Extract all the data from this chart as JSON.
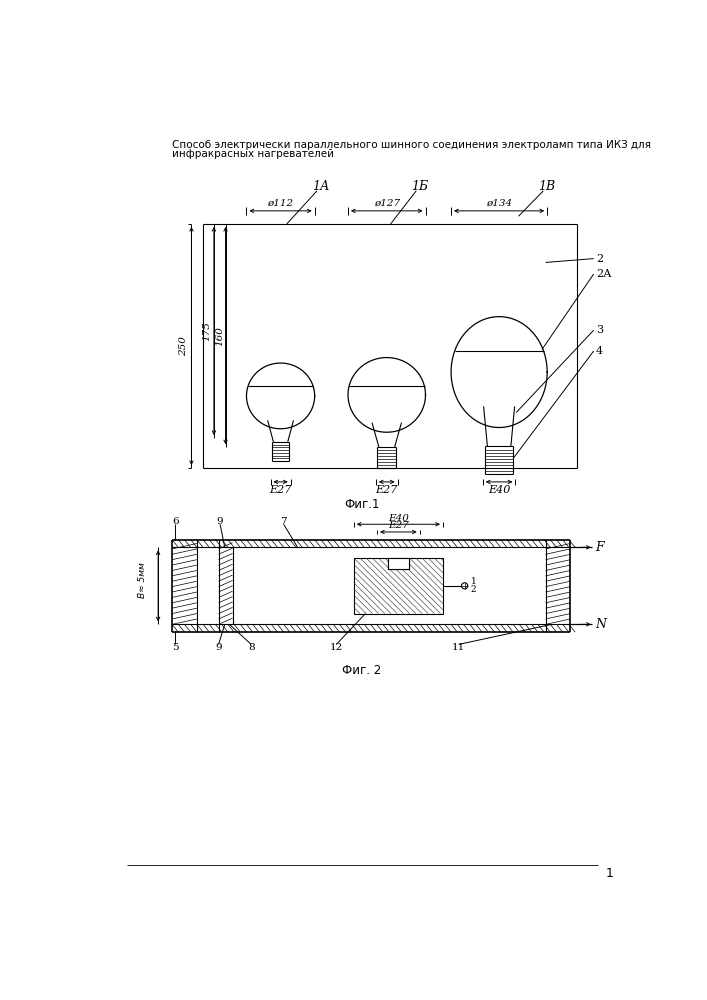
{
  "title_line1": "Способ электрически параллельного шинного соединения электроламп типа ИКЗ для",
  "title_line2": "инфракрасных нагревателей",
  "fig1_caption": "Фиг.1",
  "fig2_caption": "Фиг. 2",
  "page_number": "1",
  "bg_color": "#ffffff"
}
